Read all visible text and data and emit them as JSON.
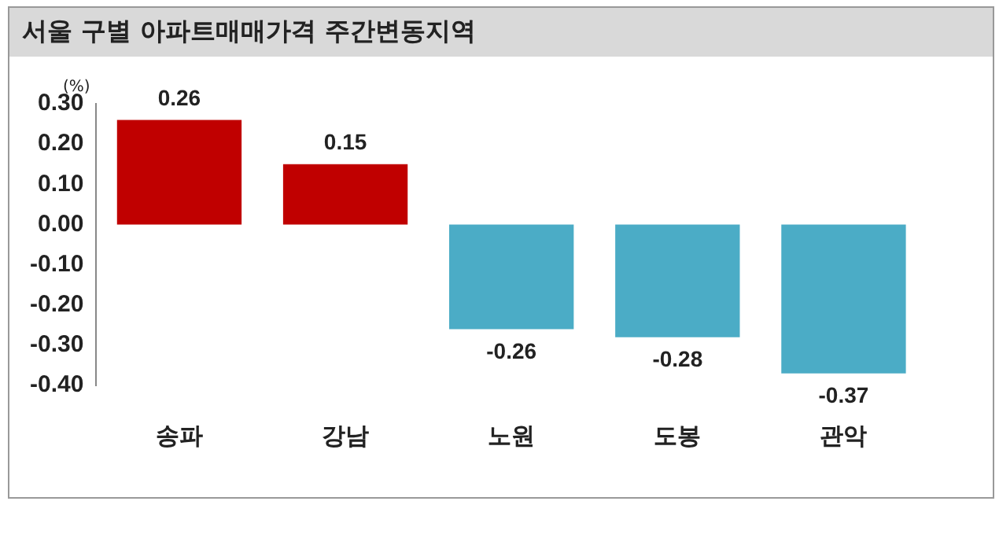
{
  "chart_data": {
    "type": "bar",
    "title": "서울 구별 아파트매매가격 주간변동지역",
    "ylabel": "(%)",
    "categories": [
      "송파",
      "강남",
      "노원",
      "도봉",
      "관악"
    ],
    "values": [
      0.26,
      0.15,
      -0.26,
      -0.28,
      -0.37
    ],
    "colors": [
      "#c00000",
      "#c00000",
      "#4bacc6",
      "#4bacc6",
      "#4bacc6"
    ],
    "ylim": [
      -0.4,
      0.3
    ],
    "yticks": [
      {
        "value": -0.4,
        "label": "-0.40"
      },
      {
        "value": -0.3,
        "label": "-0.30"
      },
      {
        "value": -0.2,
        "label": "-0.20"
      },
      {
        "value": -0.1,
        "label": "-0.10"
      },
      {
        "value": 0,
        "label": "0.00"
      },
      {
        "value": 0.1,
        "label": "0.10"
      },
      {
        "value": 0.2,
        "label": "0.20"
      },
      {
        "value": 0.3,
        "label": "0.30"
      }
    ],
    "data_labels": true,
    "grid": false,
    "legend": false
  }
}
